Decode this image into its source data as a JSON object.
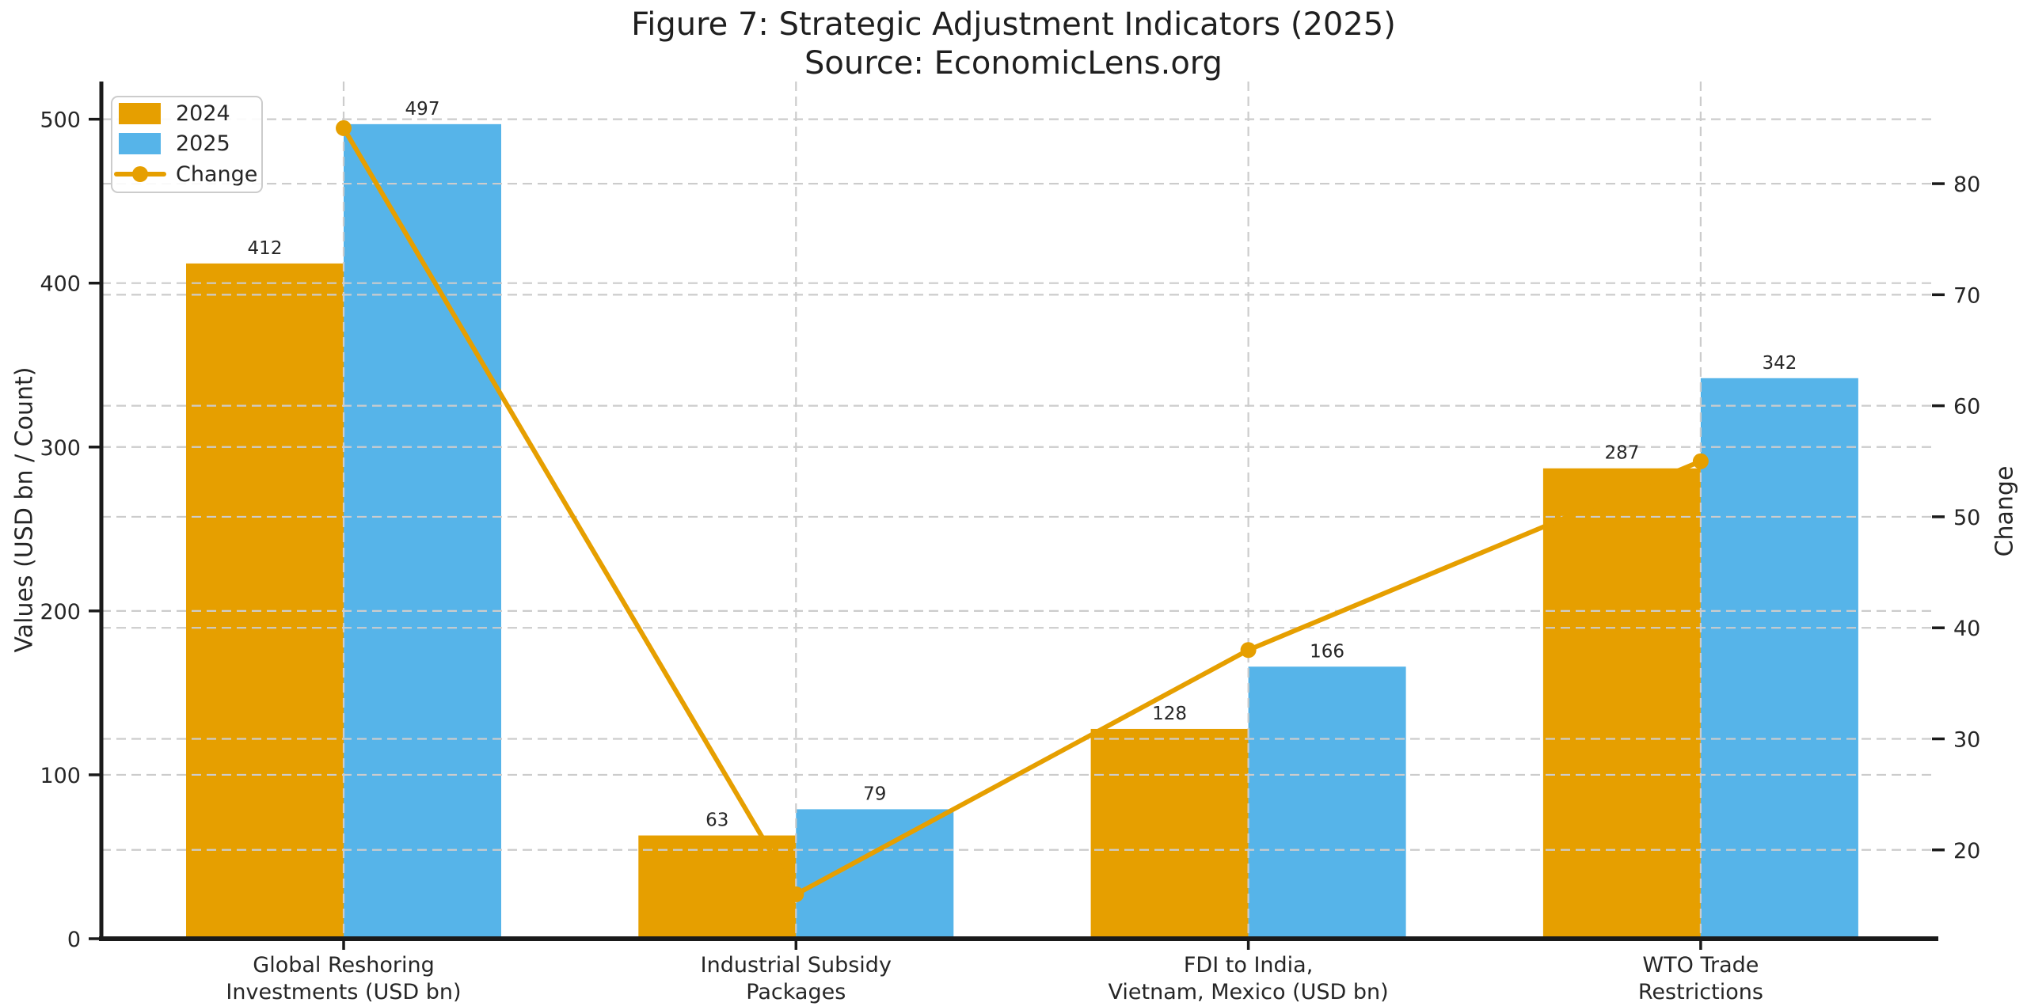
{
  "chart_data": {
    "type": "bar",
    "title_line1": "Figure 7: Strategic Adjustment Indicators (2025)",
    "title_line2": "Source: EconomicLens.org",
    "categories": [
      "Global Reshoring\nInvestments (USD bn)",
      "Industrial Subsidy\nPackages",
      "FDI to India,\nVietnam, Mexico (USD bn)",
      "WTO Trade\nRestrictions"
    ],
    "series": [
      {
        "name": "2024",
        "type": "bar",
        "axis": "left",
        "color": "#E69F00",
        "values": [
          412,
          63,
          128,
          287
        ]
      },
      {
        "name": "2025",
        "type": "bar",
        "axis": "left",
        "color": "#56B4E9",
        "values": [
          497,
          79,
          166,
          342
        ]
      },
      {
        "name": "Change",
        "type": "line",
        "axis": "right",
        "color": "#E69F00",
        "marker": "circle",
        "values": [
          85,
          16,
          38,
          55
        ]
      }
    ],
    "bar_value_labels": [
      [
        412,
        63,
        128,
        287
      ],
      [
        497,
        79,
        166,
        342
      ]
    ],
    "left_axis": {
      "label": "Values (USD bn / Count)",
      "ticks": [
        0,
        100,
        200,
        300,
        400,
        500
      ],
      "range": [
        0,
        523
      ]
    },
    "right_axis": {
      "label": "Change",
      "ticks": [
        20,
        30,
        40,
        50,
        60,
        70,
        80
      ],
      "range": [
        12,
        89.2
      ]
    },
    "grid": "dashed-both-axes-and-vertical",
    "legend_position": "upper-left",
    "legend_entries": [
      "2024",
      "2025",
      "Change"
    ]
  },
  "style_colors": {
    "bar_2024": "#E69F00",
    "bar_2025": "#56B4E9",
    "change_line": "#E69F00",
    "text": "#262626",
    "gridline": "#cccccc",
    "spine": "#1a1a1a"
  }
}
